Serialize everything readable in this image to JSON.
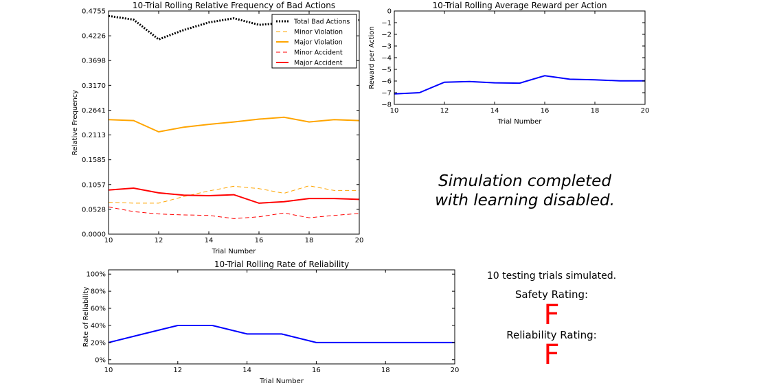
{
  "chart_data": [
    {
      "type": "line",
      "title": "10-Trial Rolling Relative Frequency of Bad Actions",
      "xlabel": "Trial Number",
      "ylabel": "Relative Frequency",
      "xlim": [
        10,
        20
      ],
      "ylim": [
        0,
        0.4755
      ],
      "xticks": [
        "10",
        "12",
        "14",
        "16",
        "18",
        "20"
      ],
      "yticks": [
        "0.0000",
        "0.0528",
        "0.1057",
        "0.1585",
        "0.2113",
        "0.2641",
        "0.3170",
        "0.3698",
        "0.4226",
        "0.4755"
      ],
      "legend_position": "top-right",
      "grid": false,
      "x": [
        10,
        11,
        12,
        13,
        14,
        15,
        16,
        17,
        18,
        19,
        20
      ],
      "series": [
        {
          "name": "Total Bad Actions",
          "color": "#000000",
          "style": "dotted",
          "values": [
            0.465,
            0.457,
            0.415,
            0.435,
            0.451,
            0.46,
            0.446,
            0.45,
            0.452,
            0.455,
            0.456
          ]
        },
        {
          "name": "Minor Violation",
          "color": "#ffa500",
          "style": "dashed",
          "values": [
            0.068,
            0.066,
            0.066,
            0.08,
            0.092,
            0.102,
            0.097,
            0.087,
            0.103,
            0.093,
            0.093
          ]
        },
        {
          "name": "Major Violation",
          "color": "#ffa500",
          "style": "solid",
          "values": [
            0.244,
            0.242,
            0.218,
            0.228,
            0.234,
            0.239,
            0.245,
            0.249,
            0.239,
            0.244,
            0.242
          ]
        },
        {
          "name": "Minor Accident",
          "color": "#ff0000",
          "style": "dashed",
          "values": [
            0.058,
            0.048,
            0.043,
            0.041,
            0.04,
            0.033,
            0.037,
            0.045,
            0.035,
            0.04,
            0.044
          ]
        },
        {
          "name": "Major Accident",
          "color": "#ff0000",
          "style": "solid",
          "values": [
            0.094,
            0.098,
            0.088,
            0.083,
            0.082,
            0.084,
            0.066,
            0.069,
            0.076,
            0.076,
            0.074
          ]
        }
      ]
    },
    {
      "type": "line",
      "title": "10-Trial Rolling Average Reward per Action",
      "xlabel": "Trial Number",
      "ylabel": "Reward per Action",
      "xlim": [
        10,
        20
      ],
      "ylim": [
        -8,
        0
      ],
      "xticks": [
        "10",
        "12",
        "14",
        "16",
        "18",
        "20"
      ],
      "yticks": [
        "0",
        "−1",
        "−2",
        "−3",
        "−4",
        "−5",
        "−6",
        "−7",
        "−8"
      ],
      "grid": false,
      "x": [
        10,
        11,
        12,
        13,
        14,
        15,
        16,
        17,
        18,
        19,
        20
      ],
      "series": [
        {
          "color": "#0000ff",
          "values": [
            -7.1,
            -7.0,
            -6.1,
            -6.05,
            -6.15,
            -6.18,
            -5.55,
            -5.85,
            -5.9,
            -5.98,
            -5.98
          ]
        }
      ]
    },
    {
      "type": "line",
      "title": "10-Trial Rolling Rate of Reliability",
      "xlabel": "Trial Number",
      "ylabel": "Rate of Reliability",
      "xlim": [
        10,
        20
      ],
      "ylim": [
        -5,
        105
      ],
      "xticks": [
        "10",
        "12",
        "14",
        "16",
        "18",
        "20"
      ],
      "yticks": [
        "0%",
        "20%",
        "40%",
        "60%",
        "80%",
        "100%"
      ],
      "grid": false,
      "x": [
        10,
        11,
        12,
        13,
        14,
        15,
        16,
        17,
        18,
        19,
        20
      ],
      "series": [
        {
          "color": "#0000ff",
          "values": [
            20,
            30,
            40,
            40,
            30,
            30,
            20,
            20,
            20,
            20,
            20
          ]
        }
      ]
    }
  ],
  "messages": {
    "simulation_line1": "Simulation completed",
    "simulation_line2": "with learning disabled.",
    "trials": "10 testing trials simulated.",
    "safety_label": "Safety Rating:",
    "safety_grade": "F",
    "safety_color": "#ff0000",
    "reliability_label": "Reliability Rating:",
    "reliability_grade": "F",
    "reliability_color": "#ff0000"
  }
}
